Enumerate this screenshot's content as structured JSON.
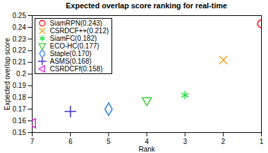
{
  "chart_data": {
    "type": "scatter",
    "title": "Expected overlap score ranking for real-time",
    "x_label": "Rank",
    "y_label": "Expected overlap score",
    "xlim": [
      7,
      1
    ],
    "xticks": [
      7,
      6,
      5,
      4,
      3,
      2,
      1
    ],
    "ylim": [
      0.15,
      0.25
    ],
    "yticks": [
      0.15,
      0.16,
      0.17,
      0.18,
      0.19,
      0.2,
      0.21,
      0.22,
      0.23,
      0.24,
      0.25
    ],
    "grid": false,
    "legend": "upper left",
    "series": [
      {
        "name": "SiamRPN(0.243)",
        "color": "#ff0000",
        "marker": "circle",
        "x": [
          1
        ],
        "values": [
          0.243
        ]
      },
      {
        "name": "CSRDCF++(0.212)",
        "color": "#e8a317",
        "marker": "x",
        "x": [
          2
        ],
        "values": [
          0.212
        ]
      },
      {
        "name": "SiamFC(0.182)",
        "color": "#1ee03c",
        "marker": "asterisk",
        "x": [
          3
        ],
        "values": [
          0.182
        ]
      },
      {
        "name": "ECO-HC(0.177)",
        "color": "#3cc83c",
        "marker": "triangle-down",
        "x": [
          4
        ],
        "values": [
          0.177
        ]
      },
      {
        "name": "Staple(0.170)",
        "color": "#2080e0",
        "marker": "diamond",
        "x": [
          5
        ],
        "values": [
          0.17
        ]
      },
      {
        "name": "ASMS(0.168)",
        "color": "#3b2ccc",
        "marker": "plus",
        "x": [
          6
        ],
        "values": [
          0.168
        ]
      },
      {
        "name": "CSRDCFf(0.158)",
        "color": "#e020e0",
        "marker": "triangle-left",
        "x": [
          7
        ],
        "values": [
          0.158
        ]
      }
    ]
  }
}
